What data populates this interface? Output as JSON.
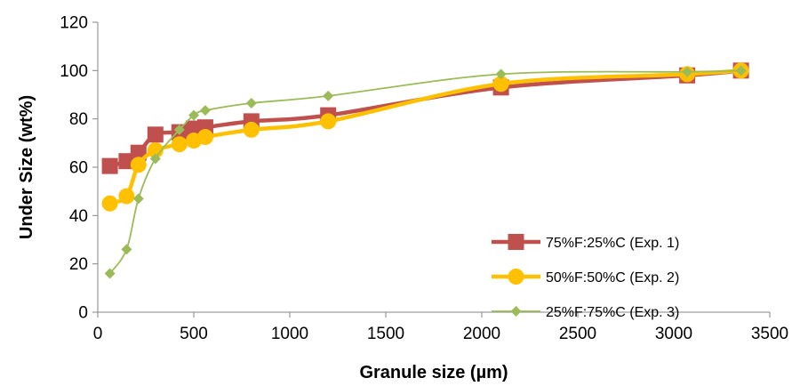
{
  "chart_data": {
    "type": "line",
    "title": "",
    "xlabel": "Granule size (µm)",
    "ylabel": "Under Size  (wt%)",
    "xlim": [
      0,
      3500
    ],
    "ylim": [
      0,
      120
    ],
    "xticks": [
      0,
      500,
      1000,
      1500,
      2000,
      2500,
      3000,
      3500
    ],
    "yticks": [
      0,
      20,
      40,
      60,
      80,
      100,
      120
    ],
    "grid": false,
    "legend_position": "bottom-right",
    "series": [
      {
        "name": "75%F:25%C (Exp. 1)",
        "color": "#c0504d",
        "marker": "square",
        "x": [
          63,
          150,
          212,
          300,
          425,
          500,
          560,
          800,
          1200,
          2100,
          3070,
          3350
        ],
        "y": [
          60.5,
          62.5,
          66,
          73.5,
          74.5,
          76,
          76.5,
          79,
          81.5,
          93,
          98,
          100
        ]
      },
      {
        "name": "50%F:50%C (Exp. 2)",
        "color": "#ffc000",
        "marker": "circle",
        "x": [
          63,
          150,
          212,
          300,
          425,
          500,
          560,
          800,
          1200,
          2100,
          3070,
          3350
        ],
        "y": [
          45,
          48,
          61,
          67,
          69.5,
          71,
          72.5,
          75.5,
          79,
          94.5,
          98.5,
          100
        ]
      },
      {
        "name": "25%F:75%C (Exp. 3)",
        "color": "#9bbb59",
        "marker": "diamond",
        "x": [
          63,
          150,
          212,
          300,
          425,
          500,
          560,
          800,
          1200,
          2100,
          3070,
          3350
        ],
        "y": [
          16,
          26,
          47,
          63.5,
          75.5,
          81.5,
          83.5,
          86.5,
          89.5,
          98.5,
          99.5,
          100
        ]
      }
    ]
  }
}
